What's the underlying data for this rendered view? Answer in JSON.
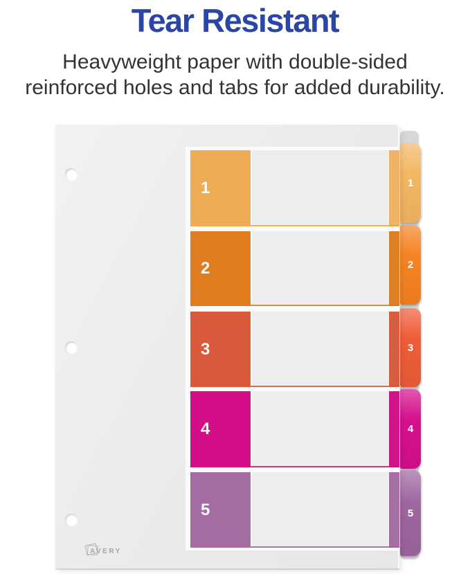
{
  "header": {
    "title": "Tear Resistant",
    "title_color": "#2B46A4",
    "subtitle_line1": "Heavyweight paper with double-sided",
    "subtitle_line2": "reinforced holes and tabs for added durability."
  },
  "divider": {
    "brand": "AVERY",
    "rows": [
      {
        "number": "1",
        "block_color": "#F0AC55",
        "tab_color": "#F4B763",
        "strip_color": "#EFB266",
        "line_color": "#E9A54B"
      },
      {
        "number": "2",
        "block_color": "#E07D21",
        "tab_color": "#F68322",
        "strip_color": "#DE8126",
        "line_color": "#DA7A20"
      },
      {
        "number": "3",
        "block_color": "#D95B3B",
        "tab_color": "#EF5D38",
        "strip_color": "#D75E40",
        "line_color": "#D4593A"
      },
      {
        "number": "4",
        "block_color": "#D40E86",
        "tab_color": "#D6108D",
        "strip_color": "#D2148A",
        "line_color": "#C9117F"
      },
      {
        "number": "5",
        "block_color": "#A46CA3",
        "tab_color": "#9F66A1",
        "strip_color": "#A56FA5",
        "line_color": "#9B62A0"
      }
    ]
  }
}
